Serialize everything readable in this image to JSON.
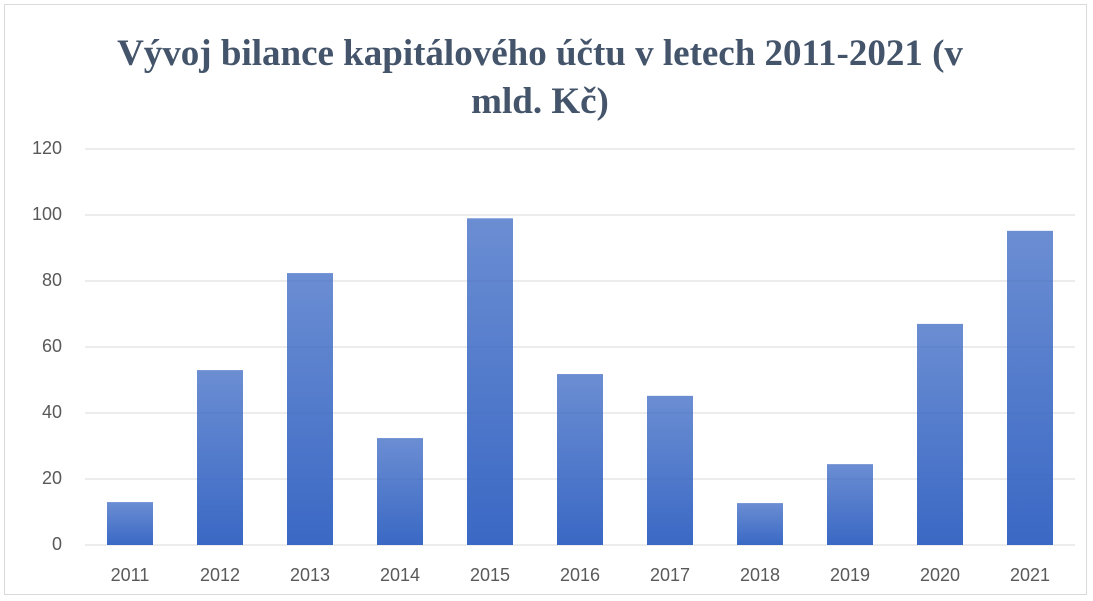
{
  "chart_data": {
    "type": "bar",
    "title": "Vývoj bilance kapitálového účtu v letech 2011-2021 (v mld. Kč)",
    "categories": [
      "2011",
      "2012",
      "2013",
      "2014",
      "2015",
      "2016",
      "2017",
      "2018",
      "2019",
      "2020",
      "2021"
    ],
    "values": [
      13,
      53,
      82.4,
      32.4,
      99,
      51.8,
      45.2,
      12.7,
      24.5,
      67,
      95.2
    ],
    "color": "#3a68c4",
    "ylim": [
      0,
      120
    ],
    "yticks": [
      0,
      20,
      40,
      60,
      80,
      100,
      120
    ],
    "grid": true
  }
}
